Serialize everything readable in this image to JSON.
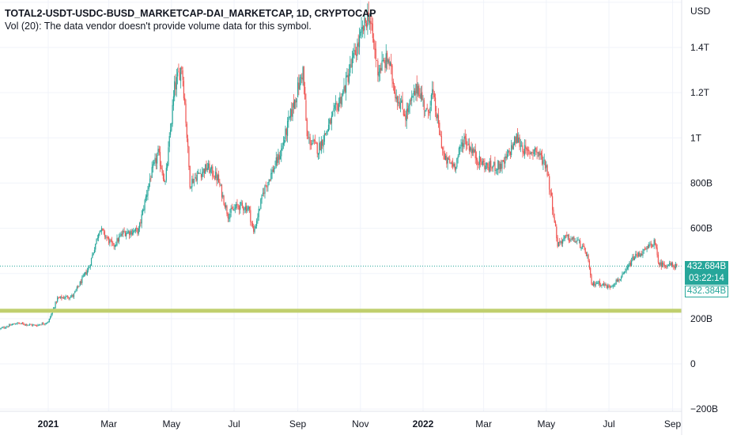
{
  "legend": {
    "title": "TOTAL2-USDT-USDC-BUSD_MARKETCAP-DAI_MARKETCAP, 1D, CRYPTOCAP",
    "volume_note": "Vol (20): The data vendor doesn't provide volume data for this symbol."
  },
  "price_tags": {
    "last_price": "432.684B",
    "countdown": "03:22:14",
    "prev_close": "432.384B"
  },
  "colors": {
    "up": "#26a69a",
    "down": "#ef5350",
    "support_line": "#c0cf6e",
    "grid": "#f0f3fa"
  },
  "chart_data": {
    "type": "candlestick",
    "title": "TOTAL2-USDT-USDC-BUSD_MARKETCAP-DAI_MARKETCAP, 1D, CRYPTOCAP",
    "currency_label": "USD",
    "ylim": [
      -200,
      1600
    ],
    "y_unit": "B",
    "y_ticks": [
      {
        "value": 1400,
        "label": "1.4T"
      },
      {
        "value": 1200,
        "label": "1.2T"
      },
      {
        "value": 1000,
        "label": "1T"
      },
      {
        "value": 800,
        "label": "800B"
      },
      {
        "value": 600,
        "label": "600B"
      },
      {
        "value": 200,
        "label": "200B"
      },
      {
        "value": 0,
        "label": "0"
      },
      {
        "value": -200,
        "label": "−200B"
      }
    ],
    "x_range": [
      "2020-11-15",
      "2022-09-05"
    ],
    "x_ticks": [
      {
        "date": "2021-01-01",
        "label": "2021",
        "bold": true
      },
      {
        "date": "2021-03-01",
        "label": "Mar"
      },
      {
        "date": "2021-05-01",
        "label": "May"
      },
      {
        "date": "2021-07-01",
        "label": "Jul"
      },
      {
        "date": "2021-09-01",
        "label": "Sep"
      },
      {
        "date": "2021-11-01",
        "label": "Nov"
      },
      {
        "date": "2022-01-01",
        "label": "2022",
        "bold": true
      },
      {
        "date": "2022-03-01",
        "label": "Mar"
      },
      {
        "date": "2022-05-01",
        "label": "May"
      },
      {
        "date": "2022-07-01",
        "label": "Jul"
      },
      {
        "date": "2022-09-01",
        "label": "Sep"
      }
    ],
    "support_level": 235,
    "last_price": 432.684,
    "close_anchors": [
      [
        "2020-11-15",
        155
      ],
      [
        "2020-12-01",
        180
      ],
      [
        "2020-12-20",
        170
      ],
      [
        "2021-01-01",
        185
      ],
      [
        "2021-01-10",
        290
      ],
      [
        "2021-01-25",
        300
      ],
      [
        "2021-02-10",
        430
      ],
      [
        "2021-02-20",
        600
      ],
      [
        "2021-03-05",
        520
      ],
      [
        "2021-03-15",
        580
      ],
      [
        "2021-03-30",
        590
      ],
      [
        "2021-04-10",
        820
      ],
      [
        "2021-04-18",
        930
      ],
      [
        "2021-04-25",
        800
      ],
      [
        "2021-05-04",
        1220
      ],
      [
        "2021-05-11",
        1320
      ],
      [
        "2021-05-14",
        1150
      ],
      [
        "2021-05-19",
        800
      ],
      [
        "2021-05-25",
        830
      ],
      [
        "2021-06-05",
        870
      ],
      [
        "2021-06-15",
        820
      ],
      [
        "2021-06-25",
        660
      ],
      [
        "2021-07-05",
        700
      ],
      [
        "2021-07-15",
        690
      ],
      [
        "2021-07-20",
        580
      ],
      [
        "2021-07-30",
        770
      ],
      [
        "2021-08-15",
        930
      ],
      [
        "2021-08-25",
        1100
      ],
      [
        "2021-09-06",
        1300
      ],
      [
        "2021-09-10",
        1000
      ],
      [
        "2021-09-21",
        950
      ],
      [
        "2021-10-01",
        1050
      ],
      [
        "2021-10-15",
        1200
      ],
      [
        "2021-10-25",
        1350
      ],
      [
        "2021-11-09",
        1550
      ],
      [
        "2021-11-18",
        1300
      ],
      [
        "2021-11-28",
        1350
      ],
      [
        "2021-12-05",
        1200
      ],
      [
        "2021-12-15",
        1100
      ],
      [
        "2021-12-27",
        1230
      ],
      [
        "2022-01-05",
        1100
      ],
      [
        "2022-01-10",
        1200
      ],
      [
        "2022-01-22",
        900
      ],
      [
        "2022-02-01",
        880
      ],
      [
        "2022-02-10",
        1000
      ],
      [
        "2022-02-24",
        900
      ],
      [
        "2022-03-05",
        870
      ],
      [
        "2022-03-20",
        880
      ],
      [
        "2022-04-02",
        1000
      ],
      [
        "2022-04-12",
        930
      ],
      [
        "2022-04-20",
        950
      ],
      [
        "2022-05-01",
        880
      ],
      [
        "2022-05-07",
        700
      ],
      [
        "2022-05-12",
        530
      ],
      [
        "2022-05-20",
        560
      ],
      [
        "2022-06-01",
        540
      ],
      [
        "2022-06-10",
        480
      ],
      [
        "2022-06-14",
        350
      ],
      [
        "2022-06-20",
        360
      ],
      [
        "2022-07-01",
        340
      ],
      [
        "2022-07-15",
        390
      ],
      [
        "2022-07-25",
        470
      ],
      [
        "2022-08-05",
        500
      ],
      [
        "2022-08-14",
        540
      ],
      [
        "2022-08-19",
        440
      ],
      [
        "2022-08-25",
        440
      ],
      [
        "2022-09-05",
        432.684
      ]
    ]
  }
}
